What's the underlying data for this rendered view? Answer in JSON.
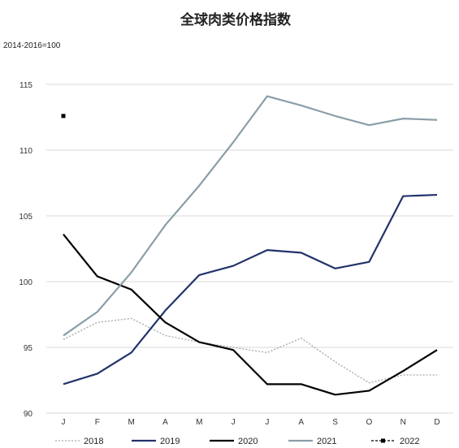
{
  "chart_data": {
    "type": "line",
    "title": "全球肉类价格指数",
    "ylabel": "2014-2016=100",
    "xlabel": "",
    "ylim": [
      90,
      115
    ],
    "yticks": [
      90,
      95,
      100,
      105,
      110,
      115
    ],
    "categories": [
      "J",
      "F",
      "M",
      "A",
      "M",
      "J",
      "J",
      "A",
      "S",
      "O",
      "N",
      "D"
    ],
    "grid": true,
    "legend_placement": "bottom",
    "series": [
      {
        "name": "2018",
        "color": "#a6a6a6",
        "style": "dotted",
        "values": [
          95.6,
          96.9,
          97.2,
          95.9,
          95.4,
          95.0,
          94.6,
          95.7,
          93.9,
          92.3,
          92.9,
          92.9
        ]
      },
      {
        "name": "2019",
        "color": "#22336b",
        "style": "solid",
        "values": [
          92.2,
          93.0,
          94.6,
          97.8,
          100.5,
          101.2,
          102.4,
          102.2,
          101.0,
          101.5,
          106.5,
          106.6
        ]
      },
      {
        "name": "2020",
        "color": "#000000",
        "style": "solid",
        "values": [
          103.6,
          100.4,
          99.4,
          96.9,
          95.4,
          94.8,
          92.2,
          92.2,
          91.4,
          91.7,
          93.2,
          94.8
        ]
      },
      {
        "name": "2021",
        "color": "#8a9ea8",
        "style": "solid",
        "values": [
          95.9,
          97.7,
          100.7,
          104.3,
          107.3,
          110.6,
          114.1,
          113.4,
          112.6,
          111.9,
          112.4,
          112.3
        ]
      },
      {
        "name": "2022",
        "color": "#000000",
        "style": "dashed-marker",
        "values": [
          112.6,
          null,
          null,
          null,
          null,
          null,
          null,
          null,
          null,
          null,
          null,
          null
        ]
      }
    ]
  }
}
